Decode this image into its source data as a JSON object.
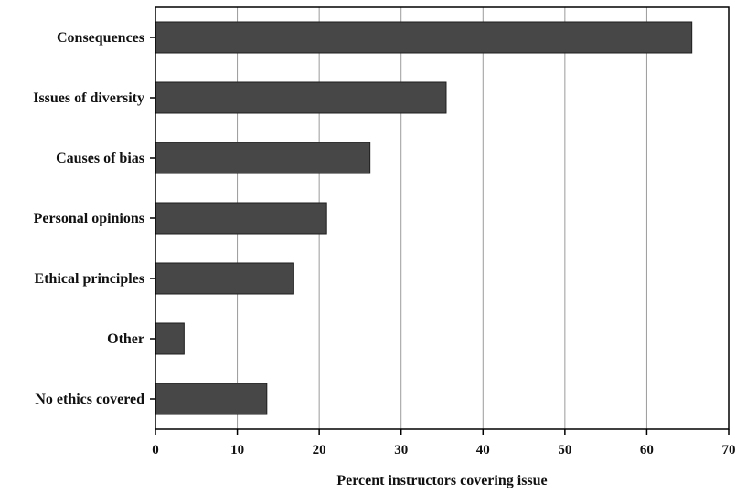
{
  "chart_data": {
    "type": "bar",
    "orientation": "horizontal",
    "title": "",
    "xlabel": "Percent instructors covering issue",
    "ylabel": "",
    "categories": [
      "Consequences",
      "Issues of diversity",
      "Causes of bias",
      "Personal opinions",
      "Ethical principles",
      "Other",
      "No ethics covered"
    ],
    "values": [
      65.5,
      35.5,
      26.2,
      20.9,
      16.9,
      3.5,
      13.6
    ],
    "xlim": [
      0,
      70
    ],
    "xticks": [
      "0",
      "10",
      "20",
      "30",
      "40",
      "50",
      "60",
      "70"
    ],
    "grid": "vertical",
    "legend": "none",
    "colors": {
      "bar": "#474747",
      "bar_edge": "#1e1e1e",
      "gridline": "#9a9a9a",
      "axis": "#000000"
    }
  }
}
